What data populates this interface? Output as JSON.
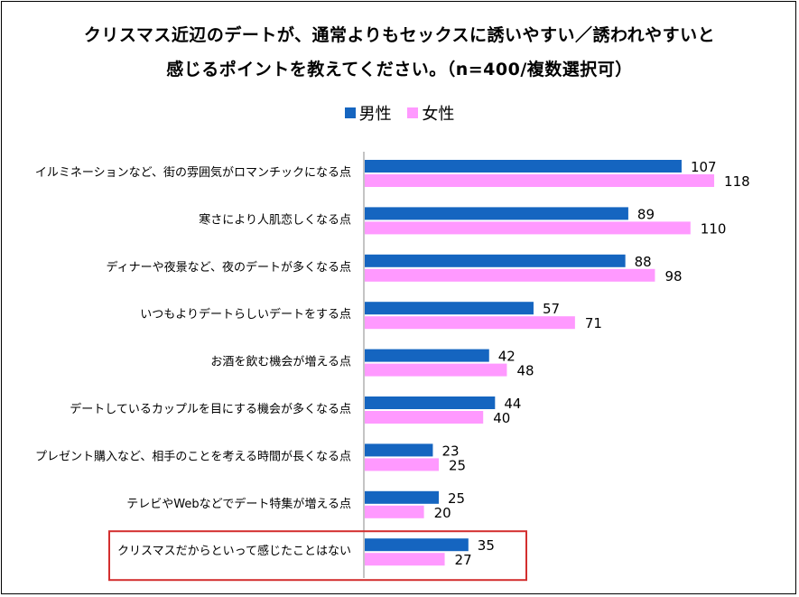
{
  "title_line1": "クリスマス近辺のデートが、通常よりもセックスに誘いやすい／誘われやすいと",
  "title_line2": "感じるポイントを教えてください。（n=400/複数選択可）",
  "chart_data": {
    "type": "bar",
    "orientation": "horizontal",
    "categories": [
      "イルミネーションなど、街の雰囲気がロマンチックになる点",
      "寒さにより人肌恋しくなる点",
      "ディナーや夜景など、夜のデートが多くなる点",
      "いつもよりデートらしいデートをする点",
      "お酒を飲む機会が増える点",
      "デートしているカップルを目にする機会が多くなる点",
      "プレゼント購入など、相手のことを考える時間が長くなる点",
      "テレビやWebなどでデート特集が増える点",
      "クリスマスだからといって感じたことはない"
    ],
    "series": [
      {
        "name": "男性",
        "color": "#1565C0",
        "values": [
          107,
          89,
          88,
          57,
          42,
          44,
          23,
          25,
          35
        ]
      },
      {
        "name": "女性",
        "color": "#FF99FF",
        "values": [
          118,
          110,
          98,
          71,
          48,
          40,
          25,
          20,
          27
        ]
      }
    ],
    "highlighted_category_index": 8,
    "highlight_color": "#D32F2F",
    "legend_position": "top",
    "grid": false
  }
}
